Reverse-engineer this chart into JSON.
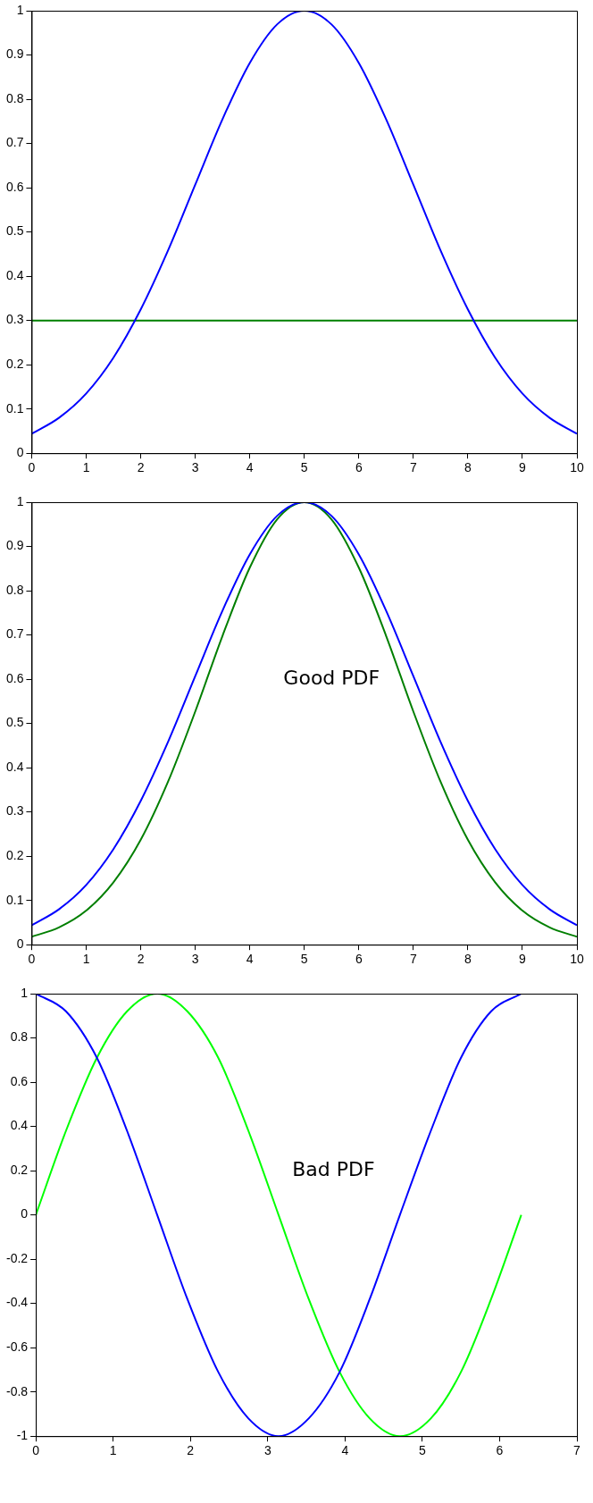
{
  "chart_data": [
    {
      "type": "line",
      "xlim": [
        0,
        10
      ],
      "ylim": [
        0,
        1
      ],
      "xticks": [
        0,
        1,
        2,
        3,
        4,
        5,
        6,
        7,
        8,
        9,
        10
      ],
      "yticks": [
        0,
        0.1,
        0.2,
        0.3,
        0.4,
        0.5,
        0.6,
        0.7,
        0.8,
        0.9,
        1
      ],
      "marker": "none",
      "series": [
        {
          "color": "#0000ff",
          "x": [
            0,
            0.5,
            1,
            1.5,
            2,
            2.5,
            3,
            3.5,
            4,
            4.5,
            5,
            5.5,
            6,
            6.5,
            7,
            7.5,
            8,
            8.5,
            9,
            9.5,
            10
          ],
          "values": [
            0.044,
            0.08,
            0.135,
            0.216,
            0.325,
            0.458,
            0.607,
            0.755,
            0.882,
            0.969,
            1,
            0.969,
            0.882,
            0.755,
            0.607,
            0.458,
            0.325,
            0.216,
            0.135,
            0.08,
            0.044
          ]
        },
        {
          "color": "#007f00",
          "x": [
            0,
            10
          ],
          "values": [
            0.3,
            0.3
          ]
        }
      ]
    },
    {
      "type": "line",
      "xlim": [
        0,
        10
      ],
      "ylim": [
        0,
        1
      ],
      "xticks": [
        0,
        1,
        2,
        3,
        4,
        5,
        6,
        7,
        8,
        9,
        10
      ],
      "yticks": [
        0,
        0.1,
        0.2,
        0.3,
        0.4,
        0.5,
        0.6,
        0.7,
        0.8,
        0.9,
        1
      ],
      "marker": "none",
      "annotations": [
        "Good PDF"
      ],
      "series": [
        {
          "color": "#0000ff",
          "x": [
            0,
            0.5,
            1,
            1.5,
            2,
            2.5,
            3,
            3.5,
            4,
            4.5,
            5,
            5.5,
            6,
            6.5,
            7,
            7.5,
            8,
            8.5,
            9,
            9.5,
            10
          ],
          "values": [
            0.044,
            0.08,
            0.135,
            0.216,
            0.325,
            0.458,
            0.607,
            0.755,
            0.882,
            0.969,
            1,
            0.969,
            0.882,
            0.755,
            0.607,
            0.458,
            0.325,
            0.216,
            0.135,
            0.08,
            0.044
          ]
        },
        {
          "color": "#007f00",
          "x": [
            0,
            0.5,
            1,
            1.5,
            2,
            2.5,
            3,
            3.5,
            4,
            4.5,
            5,
            5.5,
            6,
            6.5,
            7,
            7.5,
            8,
            8.5,
            9,
            9.5,
            10
          ],
          "values": [
            0.018,
            0.039,
            0.077,
            0.141,
            0.237,
            0.368,
            0.527,
            0.698,
            0.852,
            0.961,
            1,
            0.961,
            0.852,
            0.698,
            0.527,
            0.368,
            0.237,
            0.141,
            0.077,
            0.039,
            0.018
          ]
        }
      ]
    },
    {
      "type": "line",
      "xlim": [
        0,
        7
      ],
      "ylim": [
        -1,
        1
      ],
      "xticks": [
        0,
        1,
        2,
        3,
        4,
        5,
        6,
        7
      ],
      "yticks": [
        -1,
        -0.8,
        -0.6,
        -0.4,
        -0.2,
        0,
        0.2,
        0.4,
        0.6,
        0.8,
        1
      ],
      "marker": "none",
      "annotations": [
        "Bad PDF"
      ],
      "series": [
        {
          "color": "#0000ff",
          "x": [
            0,
            0.39,
            0.79,
            1.18,
            1.57,
            1.96,
            2.36,
            2.75,
            3.14,
            3.53,
            3.93,
            4.32,
            4.71,
            5.11,
            5.5,
            5.89,
            6.28
          ],
          "values": [
            1,
            0.92,
            0.71,
            0.38,
            0,
            -0.38,
            -0.71,
            -0.92,
            -1,
            -0.92,
            -0.71,
            -0.38,
            0,
            0.38,
            0.71,
            0.92,
            1
          ]
        },
        {
          "color": "#00ff00",
          "x": [
            0,
            0.39,
            0.79,
            1.18,
            1.57,
            1.96,
            2.36,
            2.75,
            3.14,
            3.53,
            3.93,
            4.32,
            4.71,
            5.11,
            5.5,
            5.89,
            6.28
          ],
          "values": [
            0,
            0.38,
            0.71,
            0.92,
            1,
            0.92,
            0.71,
            0.38,
            0,
            -0.38,
            -0.71,
            -0.92,
            -1,
            -0.92,
            -0.71,
            -0.38,
            0
          ]
        }
      ]
    }
  ]
}
